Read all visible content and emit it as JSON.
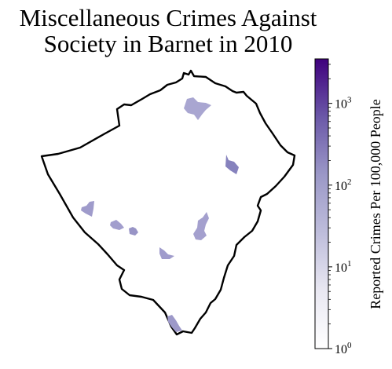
{
  "title": {
    "line1": "Miscellaneous Crimes Against",
    "line2": "Society in Barnet in 2010"
  },
  "colorbar": {
    "label": "Reported Crimes Per 100,000 People",
    "scale": "log",
    "range": [
      1,
      3500
    ],
    "ticks": [
      {
        "base": "10",
        "exp": "0",
        "value": 1
      },
      {
        "base": "10",
        "exp": "1",
        "value": 10
      },
      {
        "base": "10",
        "exp": "2",
        "value": 100
      },
      {
        "base": "10",
        "exp": "3",
        "value": 1000
      }
    ],
    "color_low": "#ffffff",
    "color_mid": "#a8a4cf",
    "color_high": "#3f007d"
  },
  "map": {
    "region": "Barnet",
    "outline_color": "#000000",
    "area_fill": "#ffffff"
  }
}
